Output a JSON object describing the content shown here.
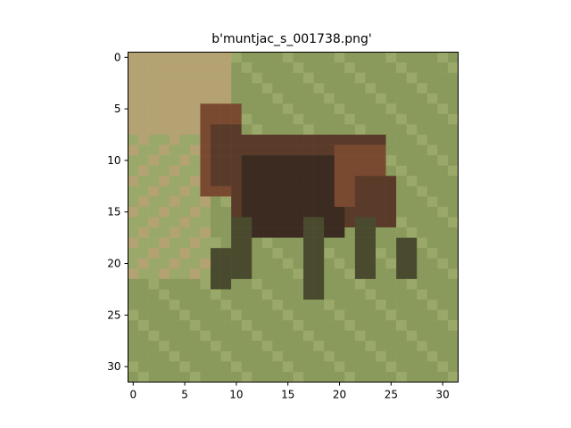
{
  "figure": {
    "title": "b'muntjac_s_001738.png'"
  },
  "image": {
    "subject": "muntjac deer standing on grass (32x32 pixel image)",
    "palette": {
      "grass": "#8a9a5c",
      "grass_light": "#9aa86a",
      "sand": "#b4a273",
      "deer_dark": "#3b2b20",
      "deer_mid": "#5a3b2a",
      "deer_red": "#7a4a30",
      "legs": "#4a4a2e"
    }
  },
  "axes": {
    "x_ticks": [
      "0",
      "5",
      "10",
      "15",
      "20",
      "25",
      "30"
    ],
    "y_ticks": [
      "0",
      "5",
      "10",
      "15",
      "20",
      "25",
      "30"
    ]
  }
}
